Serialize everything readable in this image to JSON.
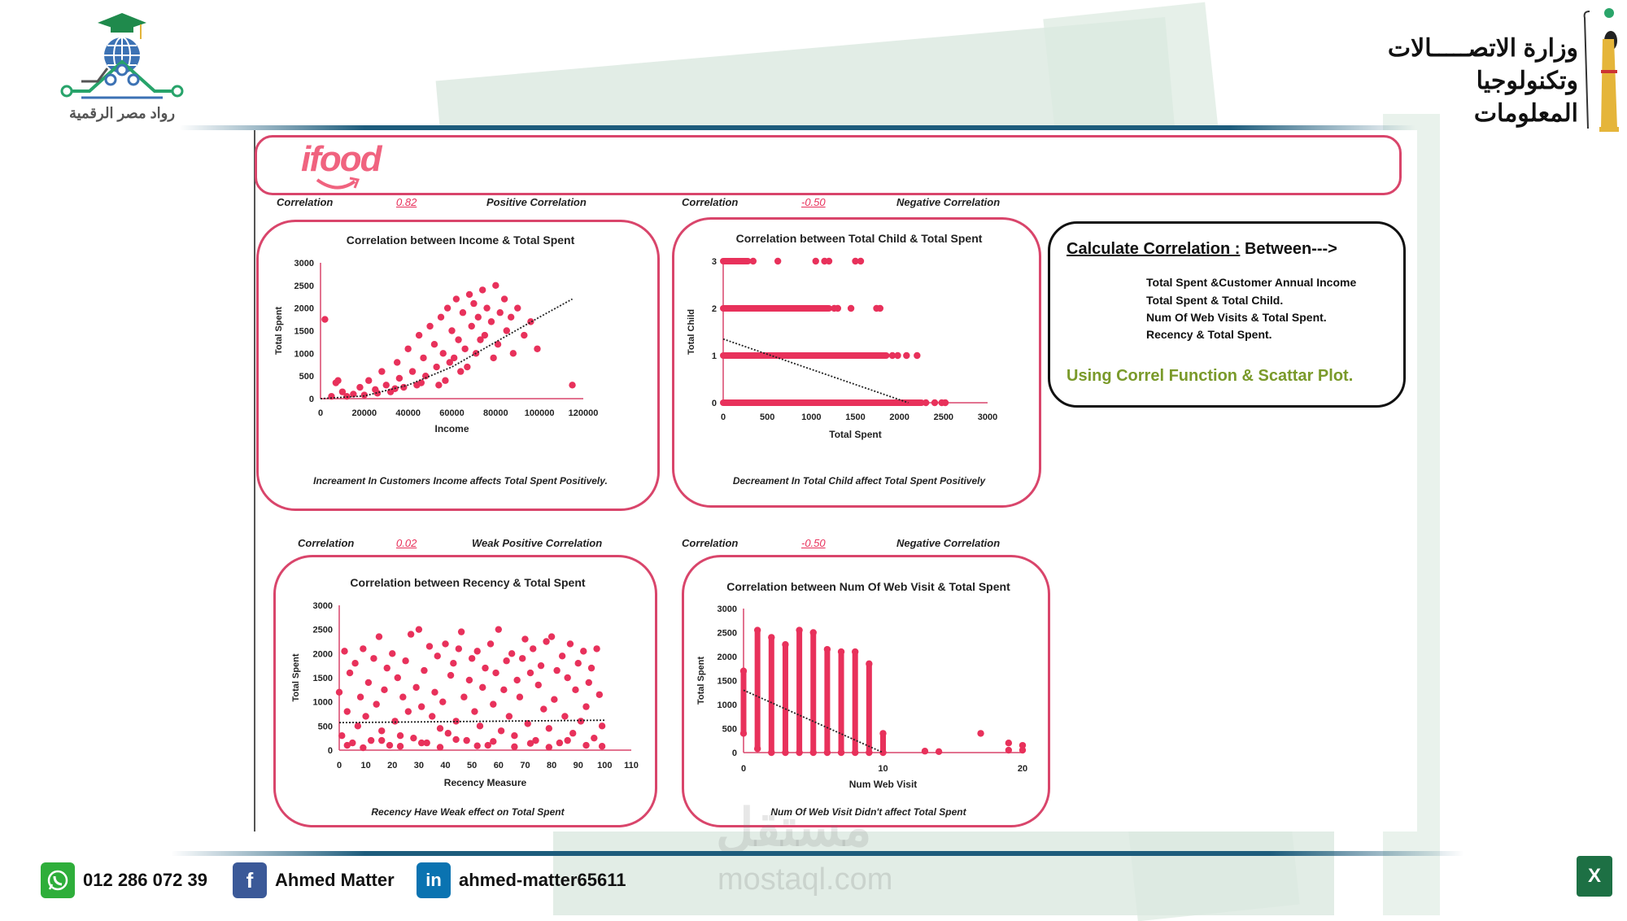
{
  "header": {
    "left_logo_text": "رواد مصر الرقمية",
    "right_logo_text_line1": "وزارة الاتصـــــالات",
    "right_logo_text_line2": "وتكنولوجيا المعلومات"
  },
  "brand": {
    "logo_text": "ifood",
    "color": "#f0637f"
  },
  "colors": {
    "accent": "#e8315b",
    "border": "#d9456b",
    "info_green": "#7a9a2a",
    "rule_blue": "#1d5c7c"
  },
  "correlations": [
    {
      "label": "Correlation",
      "value": "0.82",
      "verdict": "Positive Correlation"
    },
    {
      "label": "Correlation",
      "value": "-0.50",
      "verdict": "Negative Correlation"
    },
    {
      "label": "Correlation",
      "value": "0.02",
      "verdict": "Weak Positive Correlation"
    },
    {
      "label": "Correlation",
      "value": "-0.50",
      "verdict": "Negative Correlation"
    }
  ],
  "info_box": {
    "title": "Calculate Correlation :",
    "title_suffix": " Between--->",
    "items": [
      "Total Spent &Customer Annual Income",
      "Total Spent & Total Child.",
      "Num Of Web Visits & Total Spent.",
      "Recency & Total Spent."
    ],
    "footer": "Using Correl Function & Scattar Plot."
  },
  "chart_data": [
    {
      "type": "scatter",
      "title": "Correlation between Income & Total Spent",
      "xlabel": "Income",
      "ylabel": "Total Spent",
      "xlim": [
        0,
        120000
      ],
      "ylim": [
        0,
        3000
      ],
      "xticks": [
        "0",
        "20000",
        "40000",
        "60000",
        "80000",
        "100000",
        "120000"
      ],
      "yticks": [
        "0",
        "500",
        "1000",
        "1500",
        "2000",
        "2500",
        "3000"
      ],
      "trendline": {
        "style": "dotted",
        "kind": "polynomial",
        "points": [
          [
            0,
            0
          ],
          [
            20000,
            60
          ],
          [
            40000,
            300
          ],
          [
            60000,
            700
          ],
          [
            80000,
            1250
          ],
          [
            100000,
            1800
          ],
          [
            115000,
            2200
          ]
        ]
      },
      "caption": "Increament In Customers Income affects Total Spent Positively.",
      "points": [
        [
          2000,
          1750
        ],
        [
          5000,
          50
        ],
        [
          7000,
          350
        ],
        [
          8000,
          400
        ],
        [
          10000,
          150
        ],
        [
          15000,
          100
        ],
        [
          18000,
          250
        ],
        [
          20000,
          80
        ],
        [
          22000,
          400
        ],
        [
          25000,
          200
        ],
        [
          28000,
          600
        ],
        [
          30000,
          300
        ],
        [
          32000,
          150
        ],
        [
          35000,
          800
        ],
        [
          36000,
          450
        ],
        [
          38000,
          250
        ],
        [
          40000,
          1100
        ],
        [
          42000,
          600
        ],
        [
          44000,
          300
        ],
        [
          45000,
          1400
        ],
        [
          47000,
          900
        ],
        [
          48000,
          500
        ],
        [
          50000,
          1600
        ],
        [
          52000,
          1200
        ],
        [
          53000,
          700
        ],
        [
          55000,
          1800
        ],
        [
          56000,
          1000
        ],
        [
          57000,
          400
        ],
        [
          58000,
          2000
        ],
        [
          60000,
          1500
        ],
        [
          61000,
          900
        ],
        [
          62000,
          2200
        ],
        [
          63000,
          1300
        ],
        [
          64000,
          600
        ],
        [
          65000,
          1900
        ],
        [
          66000,
          1100
        ],
        [
          68000,
          2300
        ],
        [
          69000,
          1600
        ],
        [
          70000,
          2100
        ],
        [
          71000,
          1000
        ],
        [
          72000,
          1800
        ],
        [
          74000,
          2400
        ],
        [
          75000,
          1400
        ],
        [
          76000,
          2000
        ],
        [
          78000,
          1700
        ],
        [
          80000,
          2500
        ],
        [
          81000,
          1200
        ],
        [
          82000,
          1900
        ],
        [
          84000,
          2200
        ],
        [
          85000,
          1500
        ],
        [
          87000,
          1800
        ],
        [
          88000,
          1000
        ],
        [
          90000,
          2000
        ],
        [
          93000,
          1400
        ],
        [
          96000,
          1700
        ],
        [
          99000,
          1100
        ],
        [
          115000,
          300
        ],
        [
          12000,
          50
        ],
        [
          26000,
          120
        ],
        [
          34000,
          220
        ],
        [
          46000,
          350
        ],
        [
          54000,
          300
        ],
        [
          59000,
          800
        ],
        [
          67000,
          700
        ],
        [
          73000,
          1300
        ],
        [
          79000,
          900
        ]
      ]
    },
    {
      "type": "scatter",
      "title": "Correlation between Total Child & Total Spent",
      "xlabel": "Total Spent",
      "ylabel": "Total Child",
      "xlim": [
        0,
        3000
      ],
      "ylim": [
        0,
        3
      ],
      "xticks": [
        "0",
        "500",
        "1000",
        "1500",
        "2000",
        "2500",
        "3000"
      ],
      "yticks": [
        "0",
        "1",
        "2",
        "3"
      ],
      "trendline": {
        "style": "dotted",
        "kind": "linear",
        "points": [
          [
            0,
            1.35
          ],
          [
            2100,
            0
          ]
        ]
      },
      "caption": "Decreament In Total Child affect Total Spent Positively",
      "rows": [
        {
          "y": 3,
          "dense_to": 280,
          "points": [
            340,
            620,
            1050,
            1150,
            1200,
            1500,
            1560
          ]
        },
        {
          "y": 2,
          "dense_to": 1200,
          "points": [
            1260,
            1300,
            1450,
            1740,
            1780
          ]
        },
        {
          "y": 1,
          "dense_to": 1850,
          "points": [
            1920,
            1980,
            2080,
            2200
          ]
        },
        {
          "y": 0,
          "dense_to": 2250,
          "points": [
            2300,
            2400,
            2480,
            2520
          ]
        }
      ]
    },
    {
      "type": "scatter",
      "title": "Correlation between Recency & Total Spent",
      "xlabel": "Recency Measure",
      "ylabel": "Total Spent",
      "xlim": [
        0,
        110
      ],
      "ylim": [
        0,
        3000
      ],
      "xticks": [
        "0",
        "10",
        "20",
        "30",
        "40",
        "50",
        "60",
        "70",
        "80",
        "90",
        "100",
        "110"
      ],
      "yticks": [
        "0",
        "500",
        "1000",
        "1500",
        "2000",
        "2500",
        "3000"
      ],
      "trendline": {
        "style": "dotted",
        "kind": "linear",
        "points": [
          [
            0,
            570
          ],
          [
            100,
            620
          ]
        ]
      },
      "caption": "Recency Have Weak effect on Total Spent",
      "points": [
        [
          0,
          1200
        ],
        [
          1,
          300
        ],
        [
          2,
          2050
        ],
        [
          3,
          800
        ],
        [
          4,
          1600
        ],
        [
          5,
          150
        ],
        [
          6,
          1800
        ],
        [
          7,
          500
        ],
        [
          8,
          1100
        ],
        [
          9,
          2100
        ],
        [
          10,
          700
        ],
        [
          11,
          1400
        ],
        [
          12,
          200
        ],
        [
          13,
          1900
        ],
        [
          14,
          950
        ],
        [
          15,
          2350
        ],
        [
          16,
          400
        ],
        [
          17,
          1250
        ],
        [
          18,
          1700
        ],
        [
          19,
          100
        ],
        [
          20,
          2000
        ],
        [
          21,
          600
        ],
        [
          22,
          1500
        ],
        [
          23,
          300
        ],
        [
          24,
          1100
        ],
        [
          25,
          1850
        ],
        [
          26,
          800
        ],
        [
          27,
          2400
        ],
        [
          28,
          250
        ],
        [
          29,
          1300
        ],
        [
          30,
          2500
        ],
        [
          31,
          900
        ],
        [
          32,
          1650
        ],
        [
          33,
          150
        ],
        [
          34,
          2150
        ],
        [
          35,
          700
        ],
        [
          36,
          1200
        ],
        [
          37,
          1950
        ],
        [
          38,
          450
        ],
        [
          39,
          1000
        ],
        [
          40,
          2200
        ],
        [
          41,
          350
        ],
        [
          42,
          1550
        ],
        [
          43,
          1800
        ],
        [
          44,
          600
        ],
        [
          45,
          2100
        ],
        [
          46,
          2450
        ],
        [
          47,
          1100
        ],
        [
          48,
          200
        ],
        [
          49,
          1450
        ],
        [
          50,
          1900
        ],
        [
          51,
          800
        ],
        [
          52,
          2050
        ],
        [
          53,
          500
        ],
        [
          54,
          1300
        ],
        [
          55,
          1700
        ],
        [
          56,
          100
        ],
        [
          57,
          2200
        ],
        [
          58,
          950
        ],
        [
          59,
          1600
        ],
        [
          60,
          2500
        ],
        [
          61,
          400
        ],
        [
          62,
          1250
        ],
        [
          63,
          1850
        ],
        [
          64,
          700
        ],
        [
          65,
          2000
        ],
        [
          66,
          300
        ],
        [
          67,
          1450
        ],
        [
          68,
          1100
        ],
        [
          69,
          1900
        ],
        [
          70,
          2300
        ],
        [
          71,
          550
        ],
        [
          72,
          1600
        ],
        [
          73,
          2100
        ],
        [
          74,
          200
        ],
        [
          75,
          1350
        ],
        [
          76,
          1750
        ],
        [
          77,
          850
        ],
        [
          78,
          2250
        ],
        [
          79,
          450
        ],
        [
          80,
          2350
        ],
        [
          81,
          1050
        ],
        [
          82,
          1650
        ],
        [
          83,
          150
        ],
        [
          84,
          1950
        ],
        [
          85,
          700
        ],
        [
          86,
          1500
        ],
        [
          87,
          2200
        ],
        [
          88,
          350
        ],
        [
          89,
          1250
        ],
        [
          90,
          1800
        ],
        [
          91,
          600
        ],
        [
          92,
          2050
        ],
        [
          93,
          900
        ],
        [
          94,
          1400
        ],
        [
          95,
          1700
        ],
        [
          96,
          250
        ],
        [
          97,
          2100
        ],
        [
          98,
          1150
        ],
        [
          99,
          500
        ],
        [
          3,
          100
        ],
        [
          9,
          50
        ],
        [
          16,
          200
        ],
        [
          23,
          80
        ],
        [
          31,
          150
        ],
        [
          38,
          60
        ],
        [
          44,
          220
        ],
        [
          52,
          90
        ],
        [
          58,
          180
        ],
        [
          66,
          70
        ],
        [
          72,
          140
        ],
        [
          79,
          60
        ],
        [
          86,
          200
        ],
        [
          93,
          100
        ],
        [
          99,
          80
        ]
      ]
    },
    {
      "type": "scatter",
      "title": "Correlation between Num Of Web Visit & Total Spent",
      "xlabel": "Num Web Visit",
      "ylabel": "Total Spent",
      "xlim": [
        0,
        20
      ],
      "ylim": [
        0,
        3000
      ],
      "xticks": [
        "0",
        "10",
        "20"
      ],
      "yticks": [
        "0",
        "500",
        "1000",
        "1500",
        "2000",
        "2500",
        "3000"
      ],
      "trendline": {
        "style": "dotted",
        "kind": "linear",
        "points": [
          [
            0,
            1300
          ],
          [
            10,
            0
          ]
        ]
      },
      "caption": "Num Of Web Visit Didn't affect Total Spent",
      "columns": [
        {
          "x": 0,
          "min": 400,
          "max": 1700
        },
        {
          "x": 1,
          "min": 80,
          "max": 2550
        },
        {
          "x": 2,
          "min": 0,
          "max": 2400
        },
        {
          "x": 3,
          "min": 0,
          "max": 2250
        },
        {
          "x": 4,
          "min": 0,
          "max": 2550
        },
        {
          "x": 5,
          "min": 0,
          "max": 2500
        },
        {
          "x": 6,
          "min": 0,
          "max": 2150
        },
        {
          "x": 7,
          "min": 0,
          "max": 2100
        },
        {
          "x": 8,
          "min": 0,
          "max": 2100
        },
        {
          "x": 9,
          "min": 0,
          "max": 1850
        },
        {
          "x": 10,
          "min": 0,
          "max": 400
        }
      ],
      "points": [
        [
          13,
          30
        ],
        [
          14,
          20
        ],
        [
          17,
          400
        ],
        [
          19,
          200
        ],
        [
          19,
          50
        ],
        [
          20,
          150
        ],
        [
          20,
          50
        ]
      ]
    }
  ],
  "footer": {
    "phone": "012 286 072 39",
    "facebook": "Ahmed Matter",
    "linkedin": "ahmed-matter65611",
    "watermark_arabic": "مستقل",
    "watermark": "mostaql.com",
    "excel_badge": "X"
  }
}
